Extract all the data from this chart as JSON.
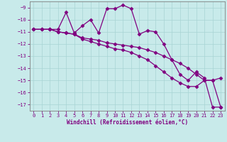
{
  "xlabel": "Windchill (Refroidissement éolien,°C)",
  "bg_color": "#c8eaea",
  "line_color": "#800080",
  "marker": "D",
  "markersize": 2.5,
  "linewidth": 0.9,
  "xlim": [
    -0.5,
    23.5
  ],
  "ylim": [
    -17.5,
    -8.5
  ],
  "yticks": [
    -9,
    -10,
    -11,
    -12,
    -13,
    -14,
    -15,
    -16,
    -17
  ],
  "xticks": [
    0,
    1,
    2,
    3,
    4,
    5,
    6,
    7,
    8,
    9,
    10,
    11,
    12,
    13,
    14,
    15,
    16,
    17,
    18,
    19,
    20,
    21,
    22,
    23
  ],
  "grid_color": "#a8d4d4",
  "series1_x": [
    0,
    1,
    2,
    3,
    4,
    5,
    6,
    7,
    8,
    9,
    10,
    11,
    12,
    13,
    14,
    15,
    16,
    17,
    18,
    19,
    20,
    21,
    22,
    23
  ],
  "series1_y": [
    -10.8,
    -10.8,
    -10.8,
    -10.8,
    -9.4,
    -11.1,
    -10.5,
    -10.0,
    -11.1,
    -9.1,
    -9.1,
    -8.8,
    -9.1,
    -11.2,
    -10.9,
    -11.0,
    -12.0,
    -13.3,
    -14.5,
    -15.0,
    -14.3,
    -14.8,
    -17.2,
    -17.2
  ],
  "series2_x": [
    0,
    1,
    2,
    3,
    4,
    5,
    6,
    7,
    8,
    9,
    10,
    11,
    12,
    13,
    14,
    15,
    16,
    17,
    18,
    19,
    20,
    21,
    22,
    23
  ],
  "series2_y": [
    -10.8,
    -10.8,
    -10.8,
    -11.0,
    -11.1,
    -11.2,
    -11.5,
    -11.6,
    -11.7,
    -11.9,
    -12.0,
    -12.1,
    -12.2,
    -12.3,
    -12.5,
    -12.7,
    -13.0,
    -13.3,
    -13.6,
    -14.0,
    -14.5,
    -15.0,
    -15.0,
    -14.8
  ],
  "series3_x": [
    0,
    1,
    2,
    3,
    4,
    5,
    6,
    7,
    8,
    9,
    10,
    11,
    12,
    13,
    14,
    15,
    16,
    17,
    18,
    19,
    20,
    21,
    22,
    23
  ],
  "series3_y": [
    -10.8,
    -10.8,
    -10.8,
    -11.0,
    -11.1,
    -11.2,
    -11.6,
    -11.8,
    -12.0,
    -12.2,
    -12.4,
    -12.5,
    -12.7,
    -13.0,
    -13.3,
    -13.8,
    -14.3,
    -14.8,
    -15.2,
    -15.5,
    -15.5,
    -15.0,
    -15.0,
    -17.2
  ]
}
